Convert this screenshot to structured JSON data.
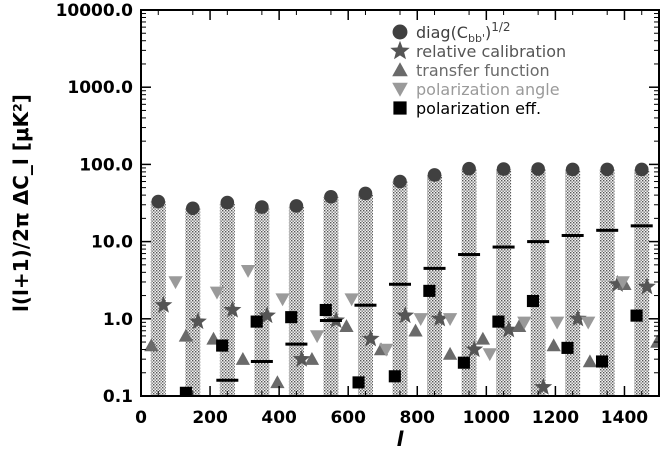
{
  "chart_data": {
    "type": "scatter",
    "xlabel": "l",
    "ylabel": "l(l+1)/2π   ΔC_l  [μK²]",
    "xlim": [
      0,
      1500
    ],
    "ylim": [
      0.1,
      10000
    ],
    "yscale": "log",
    "x_ticks": [
      0,
      200,
      400,
      600,
      800,
      1000,
      1200,
      1400
    ],
    "x_tick_labels": [
      "0",
      "200",
      "400",
      "600",
      "800",
      "1000",
      "1200",
      "1400"
    ],
    "y_ticks": [
      0.1,
      1,
      10,
      100,
      1000,
      10000
    ],
    "y_tick_labels": [
      "0.1",
      "1.0",
      "10.0",
      "100.0",
      "1000.0",
      "10000.0"
    ],
    "legend_position": "top-right",
    "band_centers": [
      50,
      150,
      250,
      350,
      450,
      550,
      650,
      750,
      850,
      950,
      1050,
      1150,
      1250,
      1350,
      1450
    ],
    "bins": [
      {
        "x": 50,
        "height": 33
      },
      {
        "x": 150,
        "height": 27
      },
      {
        "x": 250,
        "height": 32
      },
      {
        "x": 350,
        "height": 28
      },
      {
        "x": 450,
        "height": 29
      },
      {
        "x": 550,
        "height": 38
      },
      {
        "x": 650,
        "height": 42
      },
      {
        "x": 750,
        "height": 60
      },
      {
        "x": 850,
        "height": 73
      },
      {
        "x": 950,
        "height": 88
      },
      {
        "x": 1050,
        "height": 87
      },
      {
        "x": 1150,
        "height": 87
      },
      {
        "x": 1250,
        "height": 86
      },
      {
        "x": 1350,
        "height": 86
      },
      {
        "x": 1450,
        "height": 86
      }
    ],
    "series": [
      {
        "name": "diag(C_bb')^1/2",
        "marker": "circle",
        "color": "#404040",
        "points": [
          {
            "x": 50,
            "y": 33
          },
          {
            "x": 150,
            "y": 27
          },
          {
            "x": 250,
            "y": 32
          },
          {
            "x": 350,
            "y": 28
          },
          {
            "x": 450,
            "y": 29
          },
          {
            "x": 550,
            "y": 38
          },
          {
            "x": 650,
            "y": 42
          },
          {
            "x": 750,
            "y": 60
          },
          {
            "x": 850,
            "y": 73
          },
          {
            "x": 950,
            "y": 88
          },
          {
            "x": 1050,
            "y": 87
          },
          {
            "x": 1150,
            "y": 87
          },
          {
            "x": 1250,
            "y": 86
          },
          {
            "x": 1350,
            "y": 86
          },
          {
            "x": 1450,
            "y": 86
          }
        ]
      },
      {
        "name": "relative calibration",
        "marker": "star",
        "color": "#555555",
        "points": [
          {
            "x": 65,
            "y": 1.5
          },
          {
            "x": 165,
            "y": 0.92
          },
          {
            "x": 265,
            "y": 1.3
          },
          {
            "x": 365,
            "y": 1.1
          },
          {
            "x": 465,
            "y": 0.3
          },
          {
            "x": 565,
            "y": 0.95
          },
          {
            "x": 665,
            "y": 0.55
          },
          {
            "x": 765,
            "y": 1.1
          },
          {
            "x": 865,
            "y": 1.0
          },
          {
            "x": 965,
            "y": 0.4
          },
          {
            "x": 1065,
            "y": 0.72
          },
          {
            "x": 1165,
            "y": 0.13
          },
          {
            "x": 1265,
            "y": 1.0
          },
          {
            "x": 1380,
            "y": 2.8
          },
          {
            "x": 1465,
            "y": 2.6
          }
        ]
      },
      {
        "name": "transfer function",
        "marker": "triangle-up",
        "color": "#6a6a6a",
        "points": [
          {
            "x": 30,
            "y": 0.45
          },
          {
            "x": 130,
            "y": 0.6
          },
          {
            "x": 210,
            "y": 0.55
          },
          {
            "x": 295,
            "y": 0.3
          },
          {
            "x": 395,
            "y": 0.15
          },
          {
            "x": 495,
            "y": 0.3
          },
          {
            "x": 595,
            "y": 0.8
          },
          {
            "x": 695,
            "y": 0.4
          },
          {
            "x": 795,
            "y": 0.7
          },
          {
            "x": 895,
            "y": 0.35
          },
          {
            "x": 990,
            "y": 0.55
          },
          {
            "x": 1095,
            "y": 0.8
          },
          {
            "x": 1195,
            "y": 0.45
          },
          {
            "x": 1300,
            "y": 0.28
          },
          {
            "x": 1400,
            "y": 2.8
          },
          {
            "x": 1495,
            "y": 0.5
          }
        ]
      },
      {
        "name": "polarization angle",
        "marker": "triangle-down",
        "color": "#9a9a9a",
        "points": [
          {
            "x": 100,
            "y": 3.0
          },
          {
            "x": 220,
            "y": 2.2
          },
          {
            "x": 310,
            "y": 4.2
          },
          {
            "x": 410,
            "y": 1.8
          },
          {
            "x": 510,
            "y": 0.6
          },
          {
            "x": 610,
            "y": 1.8
          },
          {
            "x": 710,
            "y": 0.4
          },
          {
            "x": 810,
            "y": 1.0
          },
          {
            "x": 895,
            "y": 1.0
          },
          {
            "x": 1010,
            "y": 0.35
          },
          {
            "x": 1110,
            "y": 0.9
          },
          {
            "x": 1205,
            "y": 0.9
          },
          {
            "x": 1295,
            "y": 0.9
          },
          {
            "x": 1395,
            "y": 3.0
          }
        ]
      },
      {
        "name": "polarization eff.",
        "marker": "square",
        "color": "#000000",
        "points": [
          {
            "x": 130,
            "y": 0.11
          },
          {
            "x": 235,
            "y": 0.45
          },
          {
            "x": 335,
            "y": 0.92
          },
          {
            "x": 435,
            "y": 1.05
          },
          {
            "x": 535,
            "y": 1.3
          },
          {
            "x": 630,
            "y": 0.15
          },
          {
            "x": 735,
            "y": 0.18
          },
          {
            "x": 835,
            "y": 2.3
          },
          {
            "x": 935,
            "y": 0.27
          },
          {
            "x": 1035,
            "y": 0.92
          },
          {
            "x": 1135,
            "y": 1.7
          },
          {
            "x": 1235,
            "y": 0.42
          },
          {
            "x": 1335,
            "y": 0.28
          },
          {
            "x": 1435,
            "y": 1.1
          }
        ]
      },
      {
        "name": "",
        "marker": "dash",
        "color": "#000000",
        "points": [
          {
            "x": 250,
            "y": 0.16
          },
          {
            "x": 350,
            "y": 0.28
          },
          {
            "x": 450,
            "y": 0.47
          },
          {
            "x": 550,
            "y": 0.95
          },
          {
            "x": 650,
            "y": 1.5
          },
          {
            "x": 750,
            "y": 2.8
          },
          {
            "x": 850,
            "y": 4.5
          },
          {
            "x": 950,
            "y": 6.8
          },
          {
            "x": 1050,
            "y": 8.5
          },
          {
            "x": 1150,
            "y": 10
          },
          {
            "x": 1250,
            "y": 12
          },
          {
            "x": 1350,
            "y": 14
          },
          {
            "x": 1450,
            "y": 16
          }
        ]
      }
    ],
    "legend": [
      {
        "marker": "circle",
        "color": "#404040",
        "text": "diag(C",
        "sub": "bb'",
        "sup": "1/2",
        "tail": ")"
      },
      {
        "marker": "star",
        "color": "#555555",
        "text": "relative calibration",
        "sub": "",
        "sup": "",
        "tail": ""
      },
      {
        "marker": "triangle-up",
        "color": "#6a6a6a",
        "text": "transfer function",
        "sub": "",
        "sup": "",
        "tail": ""
      },
      {
        "marker": "triangle-down",
        "color": "#9a9a9a",
        "text": "polarization angle",
        "sub": "",
        "sup": "",
        "tail": ""
      },
      {
        "marker": "square",
        "color": "#000000",
        "text": "polarization eff.",
        "sub": "",
        "sup": "",
        "tail": ""
      }
    ]
  }
}
